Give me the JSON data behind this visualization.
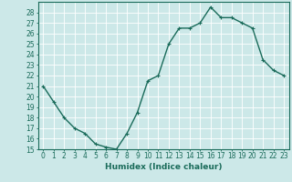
{
  "title": "",
  "xlabel": "Humidex (Indice chaleur)",
  "ylabel": "",
  "x": [
    0,
    1,
    2,
    3,
    4,
    5,
    6,
    7,
    8,
    9,
    10,
    11,
    12,
    13,
    14,
    15,
    16,
    17,
    18,
    19,
    20,
    21,
    22,
    23
  ],
  "y": [
    21,
    19.5,
    18,
    17,
    16.5,
    15.5,
    15.2,
    15,
    16.5,
    18.5,
    21.5,
    22,
    25,
    26.5,
    26.5,
    27,
    28.5,
    27.5,
    27.5,
    27,
    26.5,
    23.5,
    22.5,
    22
  ],
  "line_color": "#1a6b5a",
  "marker": "+",
  "marker_size": 3,
  "bg_color": "#cce8e8",
  "grid_color": "#ffffff",
  "ylim": [
    15,
    29
  ],
  "xlim": [
    -0.5,
    23.5
  ],
  "yticks": [
    15,
    16,
    17,
    18,
    19,
    20,
    21,
    22,
    23,
    24,
    25,
    26,
    27,
    28
  ],
  "xticks": [
    0,
    1,
    2,
    3,
    4,
    5,
    6,
    7,
    8,
    9,
    10,
    11,
    12,
    13,
    14,
    15,
    16,
    17,
    18,
    19,
    20,
    21,
    22,
    23
  ],
  "tick_label_fontsize": 5.5,
  "xlabel_fontsize": 6.5,
  "line_width": 1.0,
  "axis_color": "#1a6b5a",
  "marker_edge_width": 0.8
}
